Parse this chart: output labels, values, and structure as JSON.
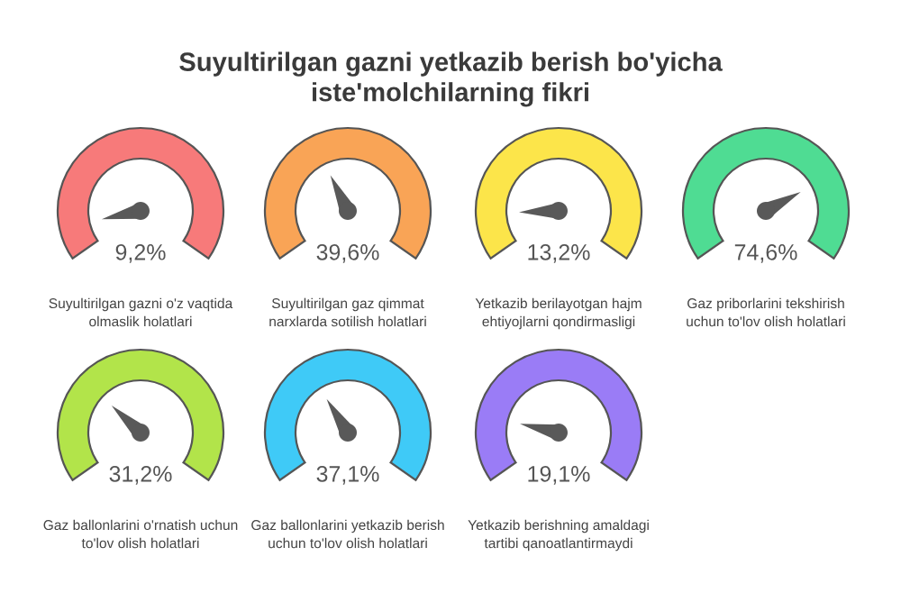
{
  "chart_data": {
    "type": "other",
    "title": "Suyultirilgan gazni yetkazib berish bo'yicha\niste'molchilarning fikri",
    "categories": [
      "Suyultirilgan gazni o'z vaqtida\nolmaslik holatlari",
      "Suyultirilgan gaz qimmat\nnarxlarda sotilish holatlari",
      "Yetkazib berilayotgan hajm\nehtiyojlarni qondirmasligi",
      "Gaz priborlarini tekshirish\nuchun to'lov olish holatlari",
      "Gaz ballonlarini o'rnatish uchun\nto'lov olish holatlari",
      "Gaz ballonlarini yetkazib berish\nuchun to'lov olish holatlari",
      "Yetkazib berishning amaldagi\ntartibi qanoatlantirmaydi"
    ],
    "values": [
      9.2,
      39.6,
      13.2,
      74.6,
      31.2,
      37.1,
      19.1
    ],
    "value_labels": [
      "9,2%",
      "39,6%",
      "13,2%",
      "74,6%",
      "31,2%",
      "37,1%",
      "19,1%"
    ],
    "colors": [
      "#f77a7a",
      "#f9a456",
      "#fce54a",
      "#4fdc93",
      "#b2e44a",
      "#3fcaf7",
      "#9a7cf6"
    ]
  }
}
